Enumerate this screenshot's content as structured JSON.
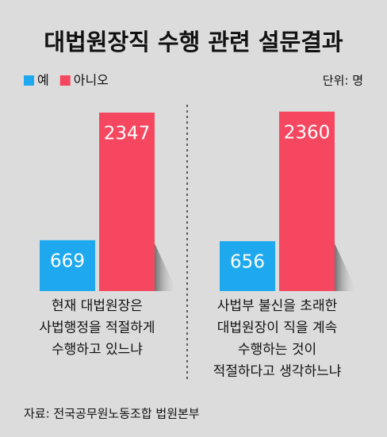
{
  "chart_data": {
    "type": "bar",
    "title": "대법원장직 수행 관련 설문결과",
    "unit": "단위: 명",
    "source": "자료: 전국공무원노동조합 법원본부",
    "categories": [
      [
        "현재 대법원장은",
        "사법행정을 적절하게",
        "수행하고 있느냐"
      ],
      [
        "사법부 불신을 초래한",
        "대법원장이 직을 계속",
        "수행하는 것이",
        "적절하다고 생각하느냐"
      ]
    ],
    "series": [
      {
        "name": "예",
        "color": "#1ea9ee",
        "values": [
          669,
          656
        ]
      },
      {
        "name": "아니오",
        "color": "#f5475f",
        "values": [
          2347,
          2360
        ]
      }
    ]
  }
}
